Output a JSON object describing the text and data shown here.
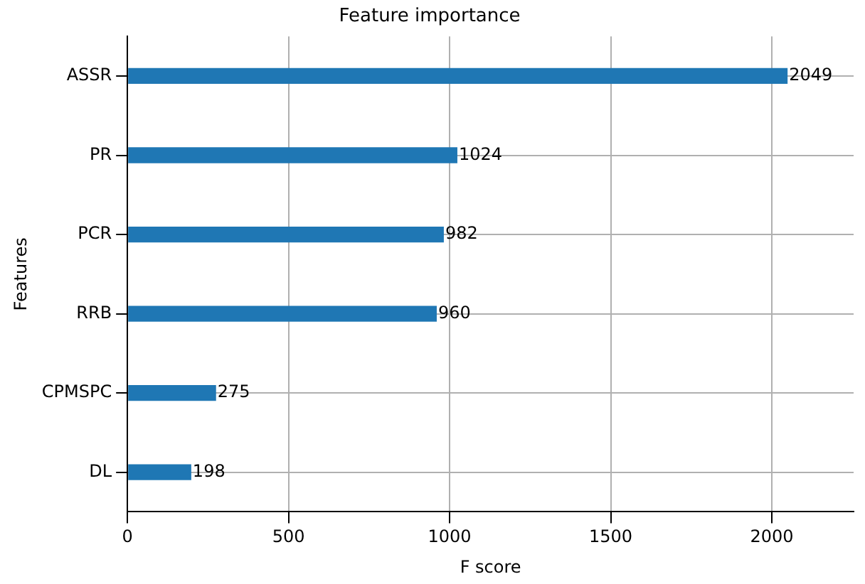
{
  "chart_data": {
    "type": "bar",
    "orientation": "horizontal",
    "title": "Feature importance",
    "xlabel": "F score",
    "ylabel": "Features",
    "categories": [
      "ASSR",
      "PR",
      "PCR",
      "RRB",
      "CPMSPC",
      "DL"
    ],
    "values": [
      2049,
      1024,
      982,
      960,
      275,
      198
    ],
    "color": "#1f77b4",
    "xlim": [
      0,
      2254
    ],
    "xticks": [
      0,
      500,
      1000,
      1500,
      2000
    ],
    "grid": true,
    "data_labels": true,
    "legend": false
  }
}
